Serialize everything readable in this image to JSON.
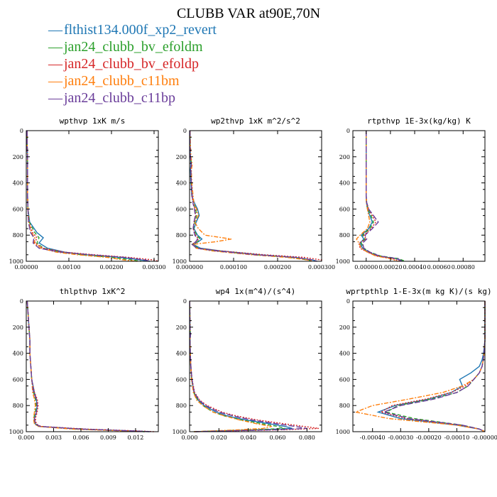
{
  "title": "CLUBB VAR at90E,70N",
  "legend": [
    {
      "label": "flthist134.000f_xp2_revert",
      "color": "#1f77b4",
      "dash": "solid"
    },
    {
      "label": "jan24_clubb_bv_efoldm",
      "color": "#2ca02c",
      "dash": "dashed"
    },
    {
      "label": "jan24_clubb_bv_efoldp",
      "color": "#d62728",
      "dash": "dotted"
    },
    {
      "label": "jan24_clubb_c11bm",
      "color": "#ff7f0e",
      "dash": "dashdot"
    },
    {
      "label": "jan24_clubb_c11bp",
      "color": "#6a3d9a",
      "dash": "longdash"
    }
  ],
  "chart_data": [
    {
      "type": "line",
      "title": "wpthvp  1xK m/s",
      "xlim": [
        0,
        0.0031
      ],
      "ylim": [
        1000,
        0
      ],
      "xticks": [
        "0.00000",
        "0.00100",
        "0.00200",
        "0.00300"
      ],
      "xtick_values": [
        0,
        0.001,
        0.002,
        0.003
      ],
      "yticks": [
        "0",
        "200",
        "400",
        "600",
        "800",
        "1000"
      ],
      "y": [
        0,
        100,
        200,
        300,
        400,
        500,
        600,
        700,
        780,
        820,
        860,
        900,
        930,
        950,
        970,
        990,
        1000
      ],
      "series": [
        {
          "values": [
            2e-05,
            2e-05,
            3e-05,
            3e-05,
            3e-05,
            3e-05,
            4e-05,
            8e-05,
            0.00025,
            0.0004,
            0.0003,
            0.0005,
            0.0009,
            0.0014,
            0.0022,
            0.0027,
            0.0029
          ]
        },
        {
          "values": [
            2e-05,
            2e-05,
            3e-05,
            3e-05,
            3e-05,
            3e-05,
            4e-05,
            7e-05,
            0.0002,
            0.0003,
            0.00025,
            0.0004,
            0.0008,
            0.0013,
            0.002,
            0.0025,
            0.0027
          ]
        },
        {
          "values": [
            2e-05,
            2e-05,
            3e-05,
            3e-05,
            3e-05,
            3e-05,
            4e-05,
            6e-05,
            0.00015,
            0.00025,
            0.0002,
            0.0004,
            0.0009,
            0.0016,
            0.0024,
            0.003,
            0.0031
          ]
        },
        {
          "values": [
            2e-05,
            2e-05,
            3e-05,
            3e-05,
            3e-05,
            3e-05,
            4e-05,
            6e-05,
            0.00012,
            0.0002,
            0.00018,
            0.00035,
            0.0007,
            0.0012,
            0.0019,
            0.0023,
            0.0026
          ]
        },
        {
          "values": [
            2e-05,
            2e-05,
            3e-05,
            3e-05,
            3e-05,
            3e-05,
            4e-05,
            5e-05,
            0.0001,
            0.00018,
            0.00016,
            0.0003,
            0.0008,
            0.0015,
            0.0023,
            0.0028,
            0.0029
          ]
        }
      ]
    },
    {
      "type": "line",
      "title": "wp2thvp  1xK m^2/s^2",
      "xlim": [
        0,
        0.0003
      ],
      "ylim": [
        1000,
        0
      ],
      "xticks": [
        "0.000000",
        "0.000100",
        "0.000200",
        "0.000300"
      ],
      "xtick_values": [
        0,
        0.0001,
        0.0002,
        0.0003
      ],
      "yticks": [
        "0",
        "200",
        "400",
        "600",
        "800",
        "1000"
      ],
      "y": [
        0,
        100,
        200,
        260,
        300,
        400,
        500,
        560,
        600,
        650,
        700,
        750,
        800,
        830,
        850,
        870,
        900,
        920,
        950,
        970,
        990,
        1000
      ],
      "series": [
        {
          "values": [
            1e-06,
            1e-06,
            2e-06,
            3e-06,
            2e-06,
            3e-06,
            5e-06,
            1.2e-05,
            1.8e-05,
            2.2e-05,
            1.5e-05,
            1e-05,
            1.8e-05,
            2.8e-05,
            2e-05,
            8e-06,
            2.5e-05,
            7e-05,
            0.00016,
            0.00024,
            0.00028,
            0.00029
          ]
        },
        {
          "values": [
            1e-06,
            1e-06,
            2e-06,
            5e-06,
            3e-06,
            4e-06,
            6e-06,
            1e-05,
            1.4e-05,
            1.6e-05,
            1.2e-05,
            9e-06,
            1.6e-05,
            2.4e-05,
            1.8e-05,
            6e-06,
            2e-05,
            6e-05,
            0.00015,
            0.00023,
            0.00027,
            0.00028
          ]
        },
        {
          "values": [
            1e-06,
            1e-06,
            2e-06,
            4e-06,
            3e-06,
            4e-06,
            5e-06,
            9e-06,
            1.2e-05,
            1.4e-05,
            1e-05,
            8e-06,
            1.4e-05,
            2e-05,
            1.6e-05,
            5e-06,
            1.8e-05,
            7e-05,
            0.00017,
            0.00026,
            0.0003,
            0.0003
          ]
        },
        {
          "values": [
            1e-06,
            2e-06,
            3e-06,
            6e-06,
            4e-06,
            5e-06,
            8e-06,
            1e-05,
            1.6e-05,
            2e-05,
            1.2e-05,
            2e-05,
            3.5e-05,
            9.5e-05,
            6e-05,
            8e-06,
            1.5e-05,
            5e-05,
            0.00014,
            0.00022,
            0.00027,
            0.00028
          ]
        },
        {
          "values": [
            1e-06,
            1e-06,
            2e-06,
            4e-06,
            3e-06,
            4e-06,
            6e-06,
            8e-06,
            1.1e-05,
            1.3e-05,
            1e-05,
            8e-06,
            1.2e-05,
            1.8e-05,
            1.4e-05,
            6e-06,
            1.6e-05,
            6e-05,
            0.00015,
            0.00024,
            0.00028,
            0.00029
          ]
        }
      ]
    },
    {
      "type": "line",
      "title": "rtpthvp  1E-3x(kg/kg) K",
      "xlim": [
        -0.00011,
        0.00098
      ],
      "ylim": [
        1000,
        0
      ],
      "xticks": [
        "0.00000",
        "0.00020",
        "0.00040",
        "0.00060",
        "0.00080"
      ],
      "xtick_values": [
        0,
        0.0002,
        0.0004,
        0.0006,
        0.0008
      ],
      "yticks": [
        "0",
        "200",
        "400",
        "600",
        "800",
        "1000"
      ],
      "y": [
        0,
        100,
        200,
        300,
        400,
        500,
        550,
        600,
        650,
        700,
        750,
        800,
        830,
        860,
        900,
        930,
        960,
        980,
        1000
      ],
      "series": [
        {
          "values": [
            0,
            0,
            0,
            0,
            0,
            0,
            2e-06,
            1e-05,
            3e-05,
            5e-05,
            2e-05,
            -4e-05,
            -2e-05,
            -5e-05,
            -3e-05,
            2e-05,
            0.0001,
            0.00025,
            0.0003
          ]
        },
        {
          "values": [
            0,
            0,
            0,
            0,
            0,
            0,
            2e-06,
            1.5e-05,
            4e-05,
            6e-05,
            3e-05,
            -3e-05,
            -1e-05,
            -4e-05,
            -2e-05,
            3e-05,
            0.00012,
            0.00027,
            0.00032
          ]
        },
        {
          "values": [
            0,
            0,
            0,
            0,
            0,
            0,
            3e-06,
            2e-05,
            5e-05,
            8e-05,
            4e-05,
            -2e-05,
            0,
            -6e-05,
            -5e-05,
            1e-05,
            9e-05,
            0.00022,
            0.00028
          ]
        },
        {
          "values": [
            0,
            0,
            0,
            0,
            0,
            0,
            2e-06,
            1e-05,
            2e-05,
            3e-05,
            1e-05,
            -5e-05,
            -8e-05,
            -6e-05,
            -4e-05,
            1e-05,
            8e-05,
            0.0002,
            0.00026
          ]
        },
        {
          "values": [
            0,
            0,
            0,
            0,
            0,
            0,
            4e-06,
            2e-05,
            6e-05,
            0.0001,
            5e-05,
            -1e-05,
            5e-06,
            -3e-05,
            -2e-05,
            3e-05,
            0.00011,
            0.00026,
            0.0003
          ]
        }
      ]
    },
    {
      "type": "line",
      "title": "thlpthvp  1xK^2",
      "xlim": [
        0,
        0.0145
      ],
      "ylim": [
        1000,
        0
      ],
      "xticks": [
        "0.000",
        "0.003",
        "0.006",
        "0.009",
        "0.012"
      ],
      "xtick_values": [
        0,
        0.003,
        0.006,
        0.009,
        0.012
      ],
      "yticks": [
        "0",
        "200",
        "400",
        "600",
        "800",
        "1000"
      ],
      "y": [
        0,
        100,
        200,
        300,
        400,
        500,
        600,
        700,
        750,
        800,
        850,
        900,
        940,
        960,
        980,
        995,
        1000
      ],
      "series": [
        {
          "values": [
            0.0001,
            0.0002,
            0.0003,
            0.0004,
            0.0004,
            0.0005,
            0.0006,
            0.0009,
            0.0011,
            0.0012,
            0.0011,
            0.0009,
            0.001,
            0.0015,
            0.006,
            0.012,
            0.0135
          ]
        },
        {
          "values": [
            0.0001,
            0.0002,
            0.0003,
            0.0004,
            0.0004,
            0.0005,
            0.0006,
            0.0008,
            0.001,
            0.0011,
            0.001,
            0.0008,
            0.0009,
            0.0014,
            0.0055,
            0.0115,
            0.013
          ]
        },
        {
          "values": [
            0.0001,
            0.0002,
            0.0003,
            0.0004,
            0.0004,
            0.0005,
            0.0006,
            0.0009,
            0.0012,
            0.0013,
            0.0012,
            0.001,
            0.0011,
            0.0016,
            0.0065,
            0.0125,
            0.014
          ]
        },
        {
          "values": [
            0.0001,
            0.0002,
            0.0003,
            0.0004,
            0.0004,
            0.0005,
            0.0006,
            0.0007,
            0.0009,
            0.001,
            0.0009,
            0.0008,
            0.0009,
            0.0013,
            0.005,
            0.011,
            0.0125
          ]
        },
        {
          "values": [
            0.0001,
            0.0002,
            0.0003,
            0.0004,
            0.0004,
            0.0005,
            0.0006,
            0.0008,
            0.0011,
            0.0012,
            0.0011,
            0.0009,
            0.001,
            0.0015,
            0.006,
            0.012,
            0.0138
          ]
        }
      ]
    },
    {
      "type": "line",
      "title": "wp4  1x(m^4)/(s^4)",
      "xlim": [
        0,
        0.09
      ],
      "ylim": [
        1000,
        0
      ],
      "xticks": [
        "0.000",
        "0.020",
        "0.040",
        "0.060",
        "0.080"
      ],
      "xtick_values": [
        0,
        0.02,
        0.04,
        0.06,
        0.08
      ],
      "yticks": [
        "0",
        "200",
        "400",
        "600",
        "800",
        "1000"
      ],
      "y": [
        0,
        100,
        200,
        260,
        300,
        400,
        500,
        600,
        700,
        760,
        800,
        850,
        880,
        910,
        940,
        960,
        975,
        985,
        1000
      ],
      "series": [
        {
          "values": [
            0.0001,
            0.0002,
            0.0003,
            0.0006,
            0.0003,
            0.0005,
            0.0008,
            0.0015,
            0.003,
            0.006,
            0.01,
            0.018,
            0.026,
            0.038,
            0.055,
            0.065,
            0.07,
            0.05,
            0.003
          ]
        },
        {
          "values": [
            0.0001,
            0.0002,
            0.0003,
            0.0005,
            0.0003,
            0.0005,
            0.0008,
            0.0014,
            0.0028,
            0.0055,
            0.009,
            0.016,
            0.024,
            0.035,
            0.05,
            0.06,
            0.065,
            0.045,
            0.003
          ]
        },
        {
          "values": [
            0.0001,
            0.0002,
            0.0003,
            0.0005,
            0.0003,
            0.0005,
            0.0009,
            0.0017,
            0.0035,
            0.007,
            0.012,
            0.022,
            0.032,
            0.046,
            0.065,
            0.078,
            0.088,
            0.065,
            0.004
          ]
        },
        {
          "values": [
            0.0001,
            0.0002,
            0.0003,
            0.0005,
            0.0003,
            0.0005,
            0.0008,
            0.0013,
            0.0026,
            0.005,
            0.009,
            0.016,
            0.024,
            0.034,
            0.046,
            0.056,
            0.05,
            0.035,
            0.003
          ]
        },
        {
          "values": [
            0.0001,
            0.0002,
            0.0003,
            0.0006,
            0.0003,
            0.0005,
            0.0009,
            0.0016,
            0.0032,
            0.0065,
            0.011,
            0.02,
            0.03,
            0.042,
            0.06,
            0.072,
            0.08,
            0.06,
            0.004
          ]
        }
      ]
    },
    {
      "type": "line",
      "title": "wprtpthlp  1-E-3x(m kg K)/(s kg)",
      "xlim": [
        -0.00047,
        0
      ],
      "ylim": [
        1000,
        0
      ],
      "xticks": [
        "-0.00040",
        "-0.00030",
        "-0.00020",
        "-0.00010",
        "-0.00000"
      ],
      "xtick_values": [
        -0.0004,
        -0.0003,
        -0.0002,
        -0.0001,
        0
      ],
      "yticks": [
        "0",
        "200",
        "400",
        "600",
        "800",
        "1000"
      ],
      "y": [
        0,
        100,
        200,
        300,
        400,
        450,
        500,
        550,
        600,
        650,
        700,
        750,
        800,
        850,
        900,
        950,
        980,
        1000
      ],
      "series": [
        {
          "values": [
            0,
            0,
            0,
            0,
            -5e-06,
            -1e-05,
            -2e-05,
            -5e-05,
            -9e-05,
            -8e-05,
            -0.00012,
            -0.0002,
            -0.00032,
            -0.00038,
            -0.0003,
            -0.0001,
            -2e-05,
            0
          ]
        },
        {
          "values": [
            0,
            0,
            0,
            0,
            -3e-06,
            -6e-06,
            -1e-05,
            -2e-05,
            -4e-05,
            -6e-05,
            -0.0001,
            -0.00019,
            -0.00031,
            -0.00035,
            -0.00025,
            -8e-05,
            -2e-05,
            0
          ]
        },
        {
          "values": [
            0,
            0,
            0,
            0,
            -3e-06,
            -6e-06,
            -1e-05,
            -2e-05,
            -4e-05,
            -7e-05,
            -0.00012,
            -0.00021,
            -0.00033,
            -0.00037,
            -0.00028,
            -9e-05,
            -2e-05,
            0
          ]
        },
        {
          "values": [
            0,
            0,
            0,
            0,
            -3e-06,
            -6e-06,
            -1e-05,
            -2e-05,
            -4e-05,
            -8e-05,
            -0.00015,
            -0.00027,
            -0.0004,
            -0.00046,
            -0.00034,
            -0.0001,
            -2e-05,
            0
          ]
        },
        {
          "values": [
            0,
            0,
            0,
            0,
            -3e-06,
            -6e-06,
            -1e-05,
            -2e-05,
            -4e-05,
            -6e-05,
            -0.0001,
            -0.00018,
            -0.0003,
            -0.00036,
            -0.00027,
            -8e-05,
            -2e-05,
            0
          ]
        }
      ]
    }
  ]
}
